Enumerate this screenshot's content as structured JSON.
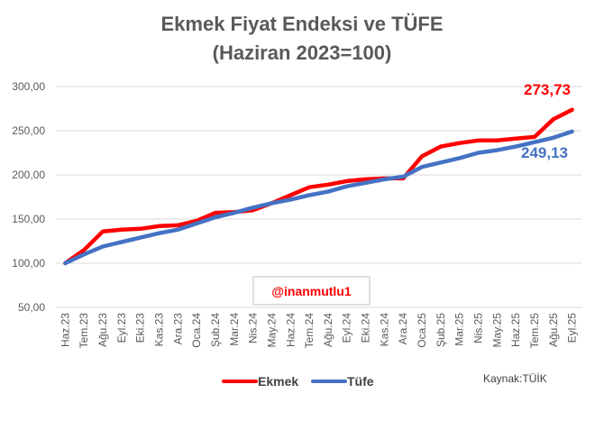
{
  "chart_data": {
    "type": "line",
    "title_line1": "Ekmek Fiyat Endeksi ve TÜFE",
    "title_line2": "(Haziran 2023=100)",
    "categories": [
      "Haz.23",
      "Tem.23",
      "Ağu.23",
      "Eyl.23",
      "Eki.23",
      "Kas.23",
      "Ara.23",
      "Oca.24",
      "Şub.24",
      "Mar.24",
      "Nis.24",
      "May.24",
      "Haz.24",
      "Tem.24",
      "Ağu.24",
      "Eyl.24",
      "Eki.24",
      "Kas.24",
      "Ara.24",
      "Oca.25",
      "Şub.25",
      "Mar.25",
      "Nis.25",
      "May.25",
      "Haz.25",
      "Tem.25",
      "Ağu.25",
      "Eyl.25"
    ],
    "series": [
      {
        "name": "Ekmek",
        "color": "#ff0000",
        "values": [
          100,
          115,
          136,
          138,
          139,
          142,
          143,
          148,
          157,
          158,
          160,
          168,
          177,
          186,
          189,
          193,
          195,
          196,
          196,
          221,
          232,
          236,
          239,
          239,
          241,
          243,
          263,
          273.73
        ],
        "end_label": "273,73"
      },
      {
        "name": "Tüfe",
        "color": "#4472c4",
        "values": [
          100,
          110,
          119,
          124,
          129,
          134,
          138,
          145,
          152,
          157,
          163,
          168,
          172,
          177,
          181,
          187,
          191,
          195,
          198,
          209,
          214,
          219,
          225,
          228,
          232,
          237,
          242,
          249.13
        ],
        "end_label": "249,13"
      }
    ],
    "y_ticks": [
      "50,00",
      "100,00",
      "150,00",
      "200,00",
      "250,00",
      "300,00"
    ],
    "ylim": [
      50,
      300
    ],
    "grid": true,
    "legend_position": "bottom"
  },
  "watermark": "@inanmutlu1",
  "source": "Kaynak:TÜİK"
}
